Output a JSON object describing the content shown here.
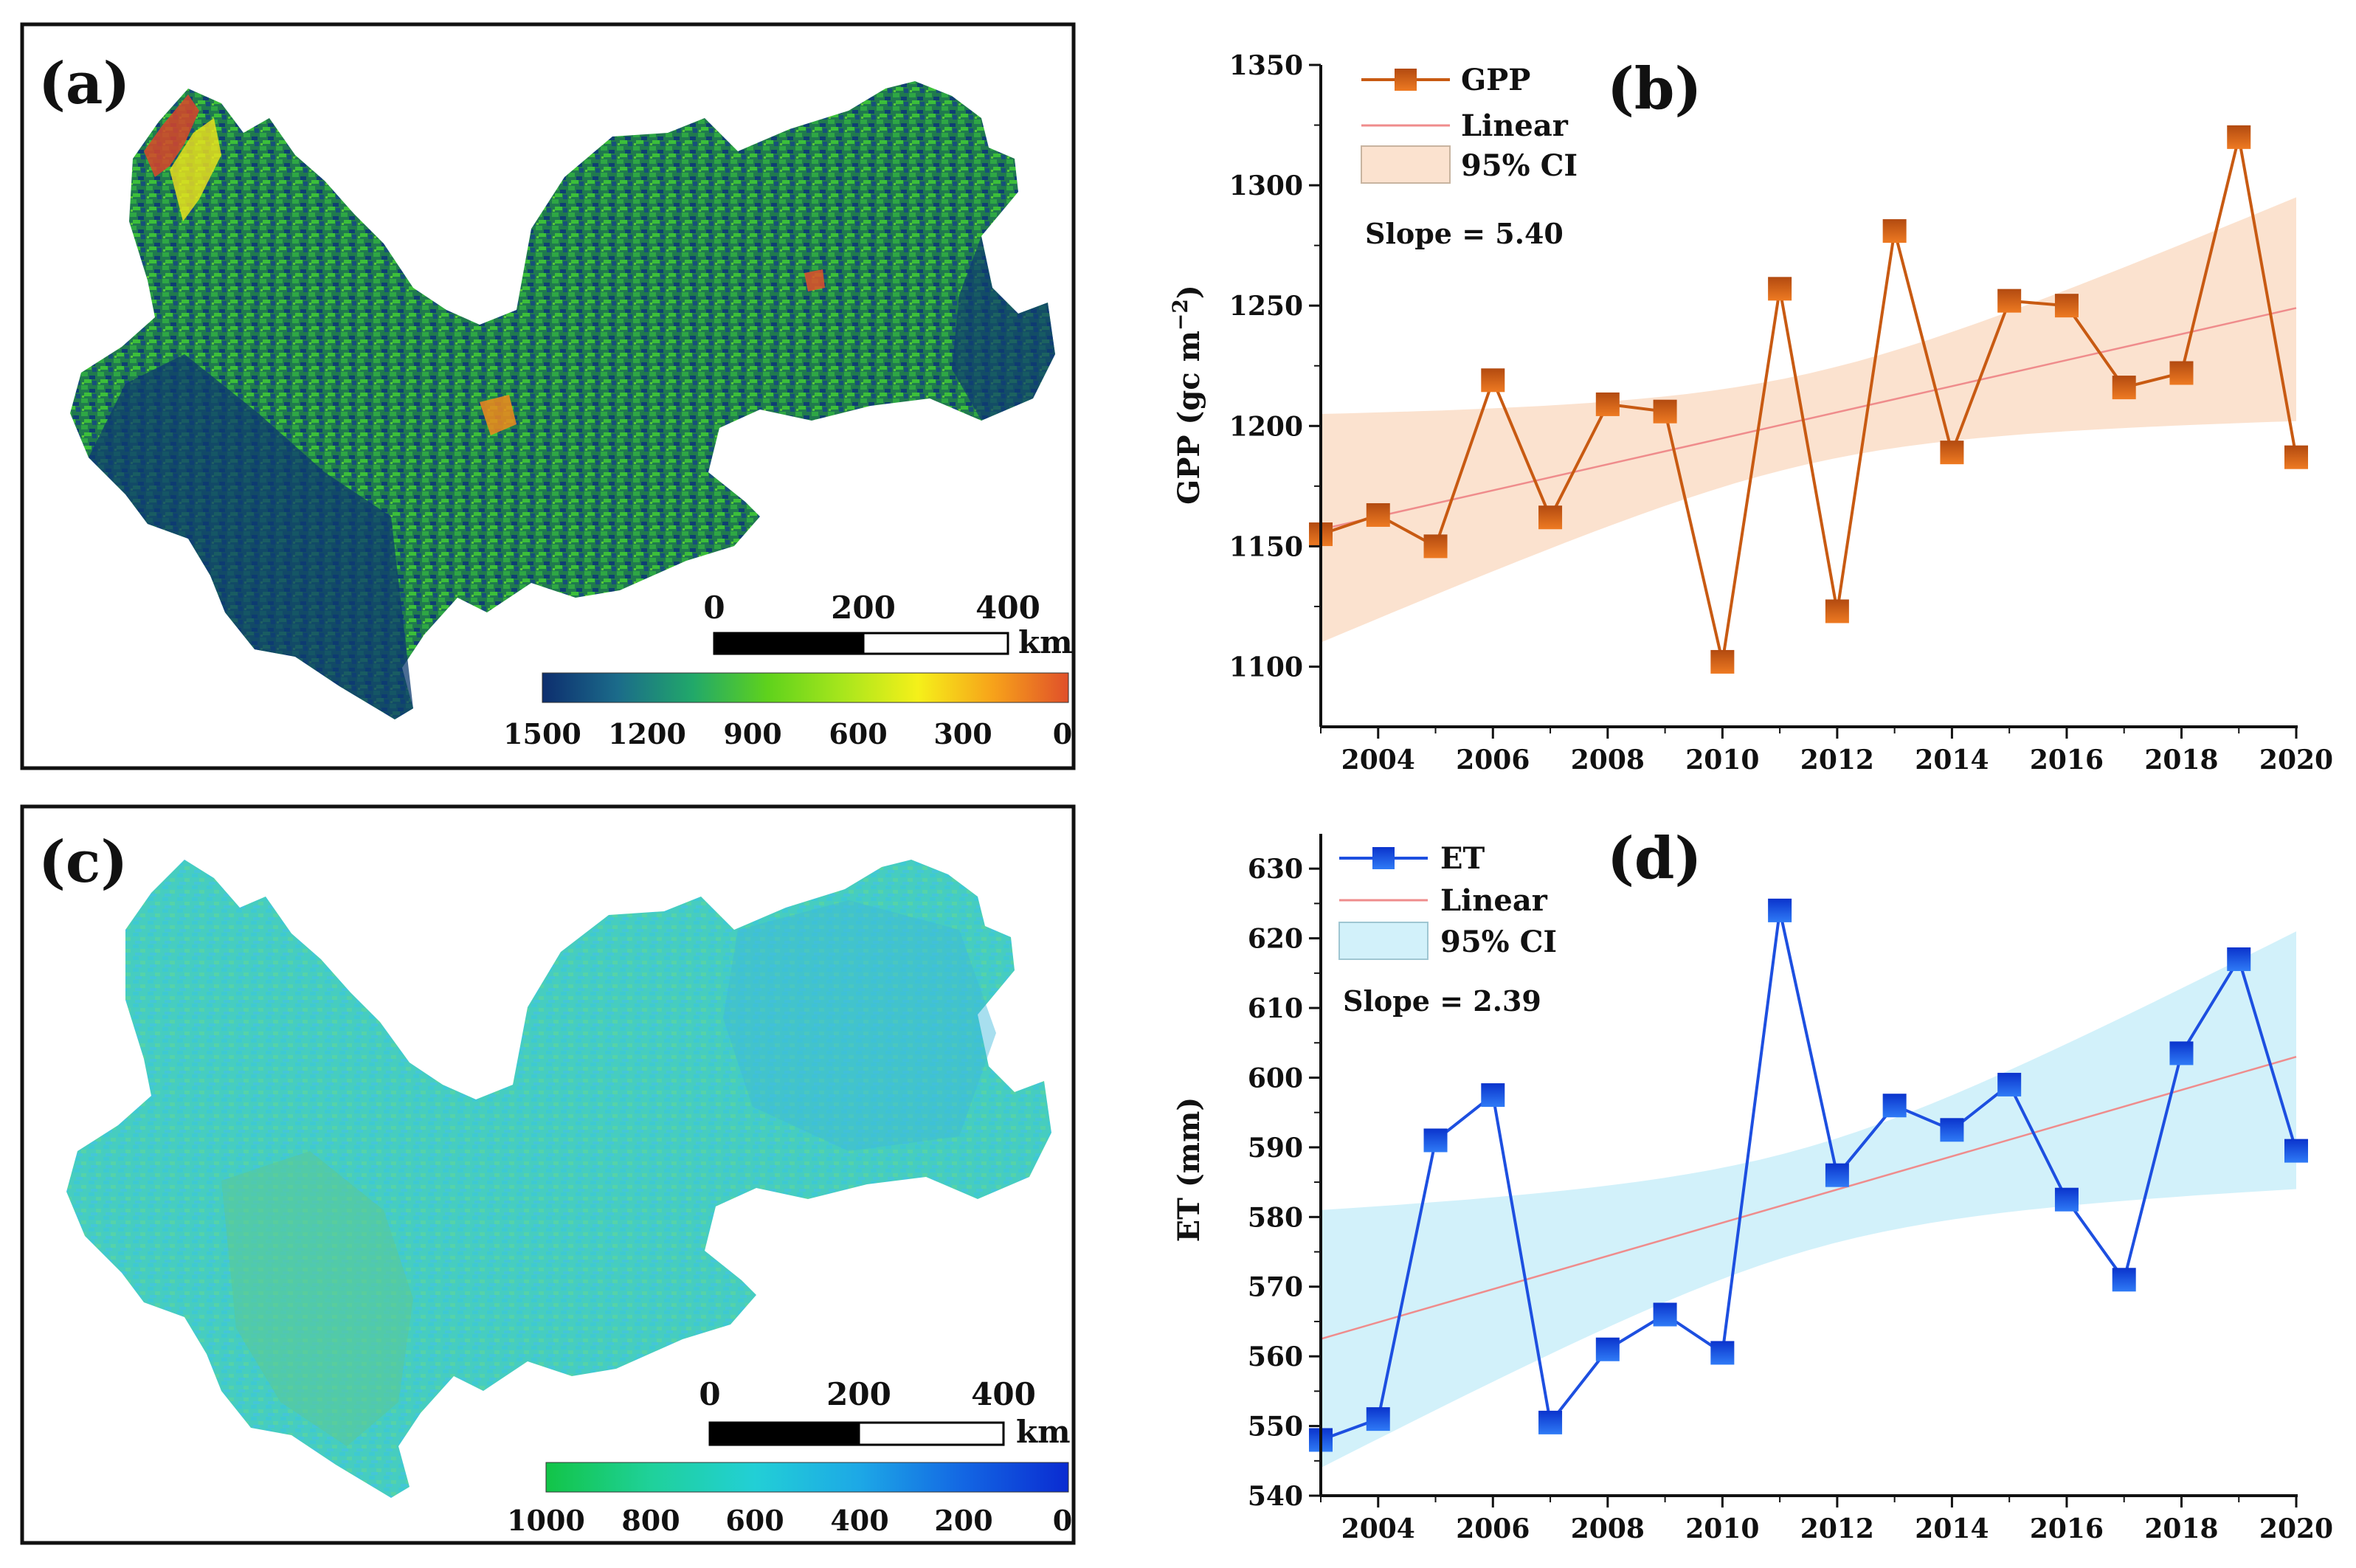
{
  "panels": {
    "a": {
      "label": "(a)",
      "colorbar_ticks": [
        "1500",
        "1200",
        "900",
        "600",
        "300",
        "0"
      ],
      "colorbar_colors": [
        "#0d2e6e",
        "#1b6b8a",
        "#21a86a",
        "#5fd21c",
        "#a8e61c",
        "#f5f01a",
        "#f7a21a",
        "#e0502a"
      ],
      "scalebar_ticks": [
        "0",
        "200",
        "400"
      ],
      "scalebar_unit": "km",
      "map_colors": [
        "#0f3f73",
        "#1f7a52",
        "#2bab3f",
        "#45c23a"
      ],
      "map_hot_colors": [
        "#f2e51c",
        "#f08a1c",
        "#d9452a"
      ]
    },
    "b": {
      "label": "(b)"
    },
    "c": {
      "label": "(c)",
      "colorbar_ticks": [
        "1000",
        "800",
        "600",
        "400",
        "200",
        "0"
      ],
      "colorbar_colors": [
        "#12c447",
        "#1fd19a",
        "#22cfd6",
        "#1da8e6",
        "#1366e3",
        "#0a2bd1"
      ],
      "scalebar_ticks": [
        "0",
        "200",
        "400"
      ],
      "scalebar_unit": "km",
      "map_colors": [
        "#4fd6b5",
        "#3fd0c2",
        "#45c8d8",
        "#5cc59c"
      ]
    },
    "d": {
      "label": "(d)"
    }
  },
  "chart_data": [
    {
      "id": "b",
      "type": "line",
      "x": [
        2003,
        2004,
        2005,
        2006,
        2007,
        2008,
        2009,
        2010,
        2011,
        2012,
        2013,
        2014,
        2015,
        2016,
        2017,
        2018,
        2019,
        2020
      ],
      "series": [
        {
          "name": "GPP",
          "values": [
            1155,
            1163,
            1150,
            1219,
            1162,
            1209,
            1206,
            1102,
            1257,
            1123,
            1281,
            1189,
            1252,
            1250,
            1216,
            1222,
            1320,
            1187
          ]
        }
      ],
      "trend_start": 1157,
      "trend_end": 1249,
      "ci_upper": [
        1205,
        1295
      ],
      "ci_lower": [
        1110,
        1202
      ],
      "xlim": [
        2003,
        2020
      ],
      "ylim": [
        1075,
        1350
      ],
      "yticks": [
        1100,
        1150,
        1200,
        1250,
        1300,
        1350
      ],
      "xticks": [
        2004,
        2006,
        2008,
        2010,
        2012,
        2014,
        2016,
        2018,
        2020
      ],
      "ylabel": "GPP (gc m",
      "ylabel_sup": "−2",
      "ylabel_close": ")",
      "legend": [
        "GPP",
        "Linear",
        "95% CI"
      ],
      "annotation": "Slope = 5.40",
      "colors": {
        "line": "#c85a12",
        "marker_top": "#b24a10",
        "marker_bottom": "#ee7a22",
        "trend": "#ef8c8c",
        "ci": "#fbe2cf"
      }
    },
    {
      "id": "d",
      "type": "line",
      "x": [
        2003,
        2004,
        2005,
        2006,
        2007,
        2008,
        2009,
        2010,
        2011,
        2012,
        2013,
        2014,
        2015,
        2016,
        2017,
        2018,
        2019,
        2020
      ],
      "series": [
        {
          "name": "ET",
          "values": [
            548,
            551,
            591,
            597.5,
            550.5,
            561,
            566,
            560.5,
            624,
            586,
            596,
            592.5,
            599,
            582.5,
            571,
            603.5,
            617,
            589.5
          ]
        }
      ],
      "trend_start": 562.5,
      "trend_end": 603,
      "ci_upper": [
        581,
        621
      ],
      "ci_lower": [
        544,
        584
      ],
      "xlim": [
        2003,
        2020
      ],
      "ylim": [
        540,
        635
      ],
      "yticks": [
        540,
        550,
        560,
        570,
        580,
        590,
        600,
        610,
        620,
        630
      ],
      "xticks": [
        2004,
        2006,
        2008,
        2010,
        2012,
        2014,
        2016,
        2018,
        2020
      ],
      "ylabel": "ET (mm)",
      "legend": [
        "ET",
        "Linear",
        "95% CI"
      ],
      "annotation": "Slope = 2.39",
      "colors": {
        "line": "#1d4fe0",
        "marker_top": "#0a33cc",
        "marker_bottom": "#2f7bf6",
        "trend": "#ef8c8c",
        "ci": "#d2f1fa"
      }
    }
  ]
}
